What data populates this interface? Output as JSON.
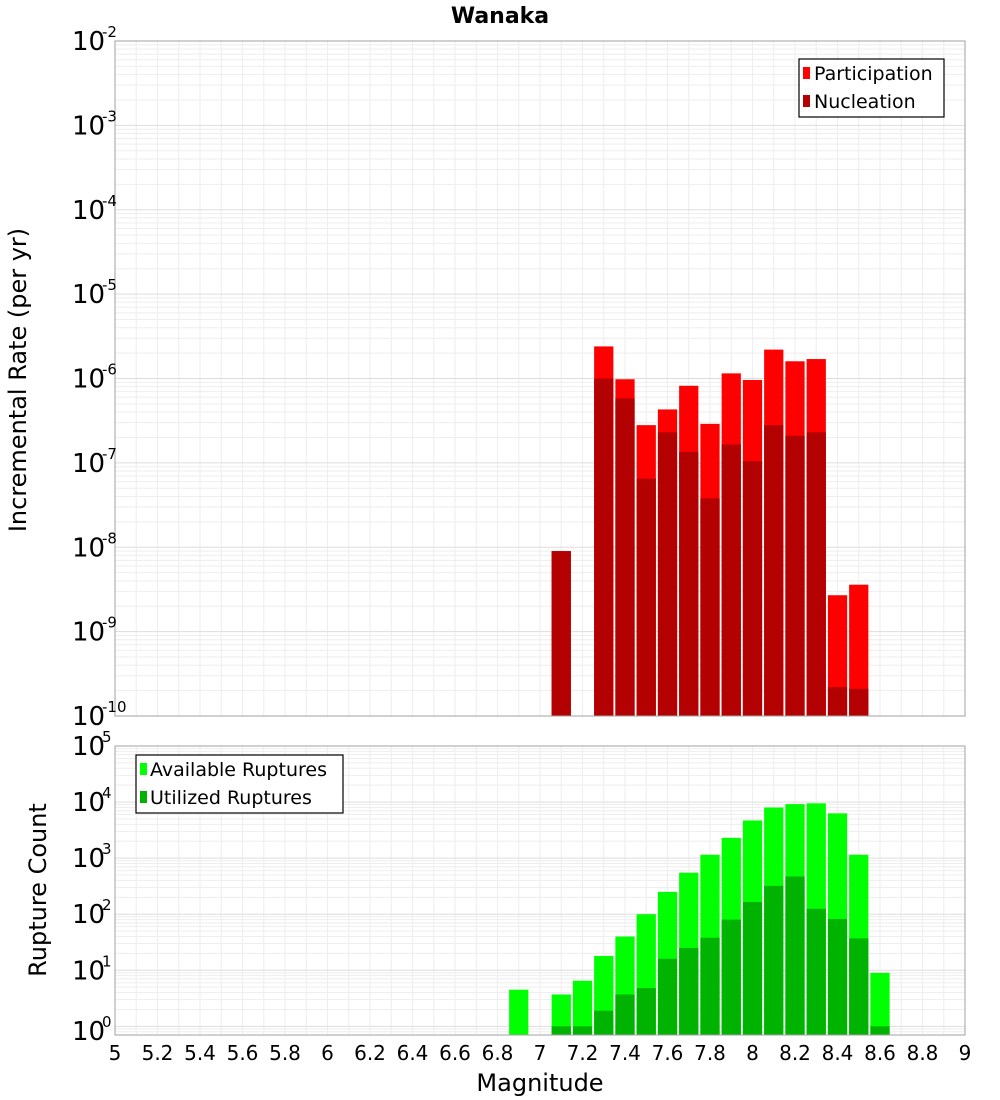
{
  "chart_data": [
    {
      "type": "bar",
      "title": "Wanaka",
      "ylabel": "Incremental Rate (per yr)",
      "xlabel": "",
      "yscale": "log",
      "ylim": [
        1e-10,
        0.01
      ],
      "xlim": [
        5,
        9
      ],
      "bar_width": 0.1,
      "grid": true,
      "legend_position": "top-right",
      "y_tick_base": "10",
      "y_tick_exponents": [
        "-10",
        "-9",
        "-8",
        "-7",
        "-6",
        "-5",
        "-4",
        "-3",
        "-2"
      ],
      "series": [
        {
          "name": "Participation",
          "color": "#ff0000",
          "points": [
            [
              7.1,
              9e-09
            ],
            [
              7.3,
              2.4e-06
            ],
            [
              7.4,
              9.8e-07
            ],
            [
              7.5,
              2.8e-07
            ],
            [
              7.6,
              4.3e-07
            ],
            [
              7.7,
              8.2e-07
            ],
            [
              7.8,
              2.9e-07
            ],
            [
              7.9,
              1.15e-06
            ],
            [
              8.0,
              9.6e-07
            ],
            [
              8.1,
              2.2e-06
            ],
            [
              8.2,
              1.6e-06
            ],
            [
              8.3,
              1.7e-06
            ],
            [
              8.4,
              2.7e-09
            ],
            [
              8.5,
              3.6e-09
            ]
          ]
        },
        {
          "name": "Nucleation",
          "color": "#b30000",
          "points": [
            [
              7.1,
              9e-09
            ],
            [
              7.3,
              1e-06
            ],
            [
              7.4,
              5.8e-07
            ],
            [
              7.5,
              6.5e-08
            ],
            [
              7.6,
              2.3e-07
            ],
            [
              7.7,
              1.35e-07
            ],
            [
              7.8,
              3.8e-08
            ],
            [
              7.9,
              1.65e-07
            ],
            [
              8.0,
              1.05e-07
            ],
            [
              8.1,
              2.8e-07
            ],
            [
              8.2,
              2.1e-07
            ],
            [
              8.3,
              2.3e-07
            ],
            [
              8.4,
              2.2e-10
            ],
            [
              8.5,
              2.1e-10
            ]
          ]
        }
      ]
    },
    {
      "type": "bar",
      "title": "",
      "ylabel": "Rupture Count",
      "xlabel": "Magnitude",
      "yscale": "log",
      "ylim": [
        0.7,
        100000
      ],
      "xlim": [
        5,
        9
      ],
      "bar_width": 0.1,
      "grid": true,
      "legend_position": "top-left",
      "x_ticks": [
        "5",
        "5.2",
        "5.4",
        "5.6",
        "5.8",
        "6",
        "6.2",
        "6.4",
        "6.6",
        "6.8",
        "7",
        "7.2",
        "7.4",
        "7.6",
        "7.8",
        "8",
        "8.2",
        "8.4",
        "8.6",
        "8.8",
        "9"
      ],
      "y_tick_base": "10",
      "y_tick_exponents": [
        "0",
        "1",
        "2",
        "3",
        "4",
        "5"
      ],
      "series": [
        {
          "name": "Available Ruptures",
          "color": "#00ff00",
          "points": [
            [
              6.9,
              4.5
            ],
            [
              7.1,
              3.7
            ],
            [
              7.2,
              6.5
            ],
            [
              7.3,
              18
            ],
            [
              7.4,
              40
            ],
            [
              7.5,
              100
            ],
            [
              7.6,
              250
            ],
            [
              7.7,
              550
            ],
            [
              7.8,
              1150
            ],
            [
              7.9,
              2300
            ],
            [
              8.0,
              4700
            ],
            [
              8.1,
              8000
            ],
            [
              8.2,
              9200
            ],
            [
              8.3,
              9500
            ],
            [
              8.4,
              6300
            ],
            [
              8.5,
              1150
            ],
            [
              8.6,
              9
            ]
          ]
        },
        {
          "name": "Utilized Ruptures",
          "color": "#00b300",
          "points": [
            [
              7.1,
              1
            ],
            [
              7.2,
              1
            ],
            [
              7.3,
              1.9
            ],
            [
              7.4,
              3.7
            ],
            [
              7.5,
              4.8
            ],
            [
              7.6,
              16
            ],
            [
              7.7,
              25
            ],
            [
              7.8,
              38
            ],
            [
              7.9,
              80
            ],
            [
              8.0,
              165
            ],
            [
              8.1,
              320
            ],
            [
              8.2,
              470
            ],
            [
              8.3,
              125
            ],
            [
              8.4,
              82
            ],
            [
              8.5,
              37
            ],
            [
              8.6,
              1
            ]
          ]
        }
      ]
    }
  ]
}
